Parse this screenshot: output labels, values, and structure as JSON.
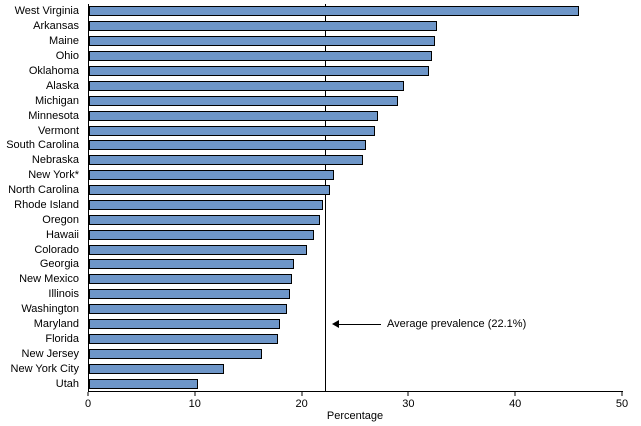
{
  "chart_data": {
    "type": "bar",
    "orientation": "horizontal",
    "title": "",
    "xlabel": "Percentage",
    "ylabel": "",
    "xlim": [
      0,
      50
    ],
    "x_ticks": [
      0,
      10,
      20,
      30,
      40,
      50
    ],
    "grid": false,
    "bar_color": "#6e96c8",
    "bar_border_color": "#000000",
    "categories": [
      "West Virginia",
      "Arkansas",
      "Maine",
      "Ohio",
      "Oklahoma",
      "Alaska",
      "Michigan",
      "Minnesota",
      "Vermont",
      "South Carolina",
      "Nebraska",
      "New York*",
      "North Carolina",
      "Rhode Island",
      "Oregon",
      "Hawaii",
      "Colorado",
      "Georgia",
      "New Mexico",
      "Illinois",
      "Washington",
      "Maryland",
      "Florida",
      "New Jersey",
      "New York City",
      "Utah"
    ],
    "values": [
      45.9,
      32.6,
      32.4,
      32.1,
      31.8,
      29.5,
      28.9,
      27.1,
      26.8,
      25.9,
      25.7,
      22.9,
      22.6,
      21.9,
      21.6,
      21.1,
      20.4,
      19.2,
      19.0,
      18.8,
      18.5,
      17.9,
      17.7,
      16.2,
      12.6,
      10.2
    ],
    "reference_line": {
      "value": 22.1,
      "label": "Average prevalence (22.1%)",
      "annotation_row": "Maryland"
    }
  }
}
